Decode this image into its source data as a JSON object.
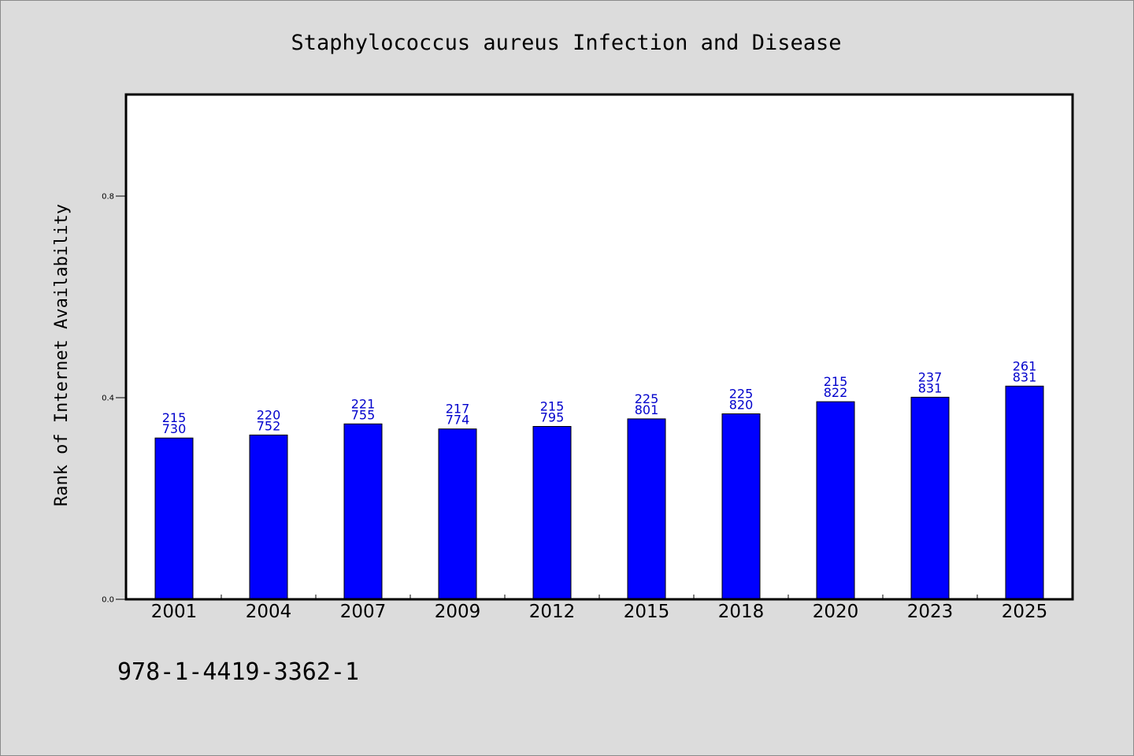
{
  "colors": {
    "background": "#dcdcdc",
    "plot_background": "#ffffff",
    "bar_fill": "#0000ff",
    "bar_stroke": "#000000",
    "data_label": "#0000cc"
  },
  "footnote": "978-1-4419-3362-1",
  "chart_data": {
    "type": "bar",
    "title": "Staphylococcus aureus Infection and Disease",
    "xlabel": "",
    "ylabel": "Rank of Internet Availability",
    "ylim": [
      0,
      1.0
    ],
    "yticks": [
      0.0,
      0.4,
      0.8
    ],
    "ytick_labels": [
      "0.0",
      "0.4",
      "0.8"
    ],
    "grid": false,
    "legend": "none",
    "categories": [
      "2001",
      "2004",
      "2007",
      "2009",
      "2012",
      "2015",
      "2018",
      "2020",
      "2023",
      "2025"
    ],
    "values": [
      0.32,
      0.326,
      0.348,
      0.338,
      0.343,
      0.358,
      0.368,
      0.392,
      0.401,
      0.423
    ],
    "labels_top": [
      "215",
      "220",
      "221",
      "217",
      "215",
      "225",
      "225",
      "215",
      "237",
      "261"
    ],
    "labels_bottom": [
      "730",
      "752",
      "755",
      "774",
      "795",
      "801",
      "820",
      "822",
      "831",
      "831"
    ]
  }
}
